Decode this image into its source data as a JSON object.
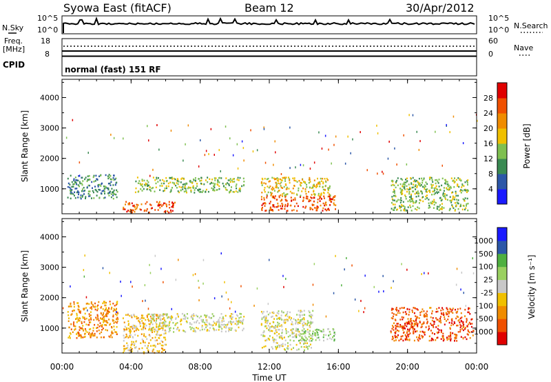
{
  "header": {
    "radar_title": "Syowa East (fitACF)",
    "beam": "Beam 12",
    "date": "30/Apr/2012"
  },
  "strips": {
    "nsky_label": "N.Sky",
    "nsky_top": "10^5",
    "nsky_bottom": "10^0",
    "nsearch_label": "N.Search",
    "nsearch_top": "10^5",
    "nsearch_bottom": "10^0",
    "freq_label": "Freq.",
    "freq_unit": "[MHz]",
    "freq_top": "18",
    "freq_bottom": "8",
    "nave_label": "Nave",
    "nave_top": "60",
    "nave_bottom": "0",
    "cpid_label": "CPID",
    "cpid_value": "normal (fast) 151 RF"
  },
  "colors": {
    "power": [
      "#1a1aff",
      "#2c57a8",
      "#3a8a52",
      "#7fc050",
      "#f0c000",
      "#f08c00",
      "#f05000",
      "#e00000"
    ],
    "velocity": [
      "#e00000",
      "#f05000",
      "#f08c00",
      "#f0c000",
      "#c8c8c8",
      "#9ad060",
      "#4fb040",
      "#2c57a8",
      "#1a1aff"
    ]
  },
  "chart_data": [
    {
      "type": "heatmap",
      "name": "power",
      "ylabel": "Slant Range [km]",
      "ylim": [
        180,
        4600
      ],
      "yticks": [
        "1000",
        "2000",
        "3000",
        "4000"
      ],
      "xlim": [
        0,
        24
      ],
      "xticks": [
        "00:00",
        "04:00",
        "08:00",
        "12:00",
        "16:00",
        "20:00",
        "00:00"
      ],
      "colorbar": {
        "label": "Power [dB]",
        "ticks": [
          "4",
          "8",
          "12",
          "16",
          "20",
          "24",
          "28"
        ]
      },
      "regions": [
        {
          "t0": 0.3,
          "t1": 3.2,
          "r0": 700,
          "r1": 1500,
          "level": 2
        },
        {
          "t0": 3.5,
          "t1": 6.5,
          "r0": 250,
          "r1": 600,
          "level": 6
        },
        {
          "t0": 4.2,
          "t1": 10.5,
          "r0": 900,
          "r1": 1400,
          "level": 3
        },
        {
          "t0": 11.5,
          "t1": 15.8,
          "r0": 300,
          "r1": 800,
          "level": 6
        },
        {
          "t0": 11.5,
          "t1": 15.5,
          "r0": 800,
          "r1": 1400,
          "level": 4
        },
        {
          "t0": 19.0,
          "t1": 23.5,
          "r0": 300,
          "r1": 1400,
          "level": 3
        }
      ]
    },
    {
      "type": "heatmap",
      "name": "velocity",
      "ylabel": "Slant Range [km]",
      "ylim": [
        180,
        4600
      ],
      "yticks": [
        "1000",
        "2000",
        "3000",
        "4000"
      ],
      "xlim": [
        0,
        24
      ],
      "xticks": [
        "00:00",
        "04:00",
        "08:00",
        "12:00",
        "16:00",
        "20:00",
        "00:00"
      ],
      "xlabel": "Time UT",
      "colorbar": {
        "label": "Velocity [m s⁻¹]",
        "ticks": [
          "1000",
          "500",
          "100",
          "25",
          "-25",
          "-100",
          "-500",
          "-1000"
        ]
      },
      "regions": [
        {
          "t0": 0.3,
          "t1": 3.2,
          "r0": 700,
          "r1": 1900,
          "level": 2
        },
        {
          "t0": 3.5,
          "t1": 6.0,
          "r0": 200,
          "r1": 1500,
          "level": 3
        },
        {
          "t0": 5.0,
          "t1": 10.5,
          "r0": 900,
          "r1": 1500,
          "level": 4
        },
        {
          "t0": 11.5,
          "t1": 14.5,
          "r0": 300,
          "r1": 1600,
          "level": 4
        },
        {
          "t0": 13.5,
          "t1": 15.8,
          "r0": 600,
          "r1": 1000,
          "level": 5
        },
        {
          "t0": 19.0,
          "t1": 23.8,
          "r0": 600,
          "r1": 1700,
          "level": 1
        }
      ]
    }
  ]
}
